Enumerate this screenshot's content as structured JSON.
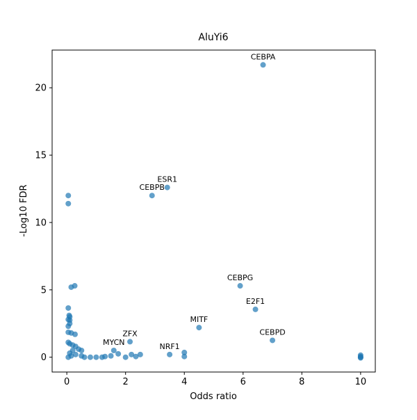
{
  "chart_data": {
    "type": "scatter",
    "title": "AluYi6",
    "x_label": "Odds ratio",
    "y_label": "-Log10 FDR",
    "color": "#1f77b4",
    "xlim": [
      -0.5,
      10.5
    ],
    "ylim": [
      -1.1,
      22.8
    ],
    "xticks": [
      0,
      2,
      4,
      6,
      8,
      10
    ],
    "yticks": [
      0,
      5,
      10,
      15,
      20
    ],
    "grid": false,
    "x": [
      6.68,
      3.42,
      2.9,
      5.9,
      6.42,
      4.5,
      7.0,
      3.5,
      2.15,
      1.6,
      0.05,
      0.05,
      0.15,
      0.27,
      0.05,
      0.08,
      0.1,
      0.05,
      0.1,
      0.05,
      0.1,
      0.05,
      0.15,
      0.28,
      0.05,
      0.1,
      0.2,
      0.3,
      0.4,
      0.5,
      0.2,
      0.1,
      0.05,
      0.15,
      0.3,
      0.5,
      0.6,
      0.8,
      1.0,
      1.2,
      1.3,
      1.5,
      1.75,
      2.0,
      2.2,
      2.35,
      2.5,
      4.0,
      4.0,
      10,
      10,
      10,
      10
    ],
    "values": [
      21.7,
      12.6,
      12.0,
      5.3,
      3.55,
      2.2,
      1.25,
      0.2,
      1.15,
      0.5,
      12.0,
      11.4,
      5.2,
      5.3,
      3.65,
      3.1,
      3.0,
      2.8,
      2.75,
      2.3,
      2.5,
      1.85,
      1.8,
      1.7,
      1.1,
      1.0,
      0.9,
      0.8,
      0.6,
      0.5,
      0.5,
      0.3,
      0,
      0.1,
      0.2,
      0.1,
      0,
      0,
      0,
      0,
      0.05,
      0.1,
      0.25,
      0,
      0.2,
      0.05,
      0.2,
      0.35,
      0.05,
      0.15,
      0.05,
      0,
      -0.05
    ],
    "labels": [
      "CEBPA",
      "ESR1",
      "CEBPB",
      "CEBPG",
      "E2F1",
      "MITF",
      "CEBPD",
      "NRF1",
      "ZFX",
      "MYCN",
      null,
      null,
      null,
      null,
      null,
      null,
      null,
      null,
      null,
      null,
      null,
      null,
      null,
      null,
      null,
      null,
      null,
      null,
      null,
      null,
      null,
      null,
      null,
      null,
      null,
      null,
      null,
      null,
      null,
      null,
      null,
      null,
      null,
      null,
      null,
      null,
      null,
      null,
      null,
      null,
      null,
      null,
      null
    ]
  }
}
